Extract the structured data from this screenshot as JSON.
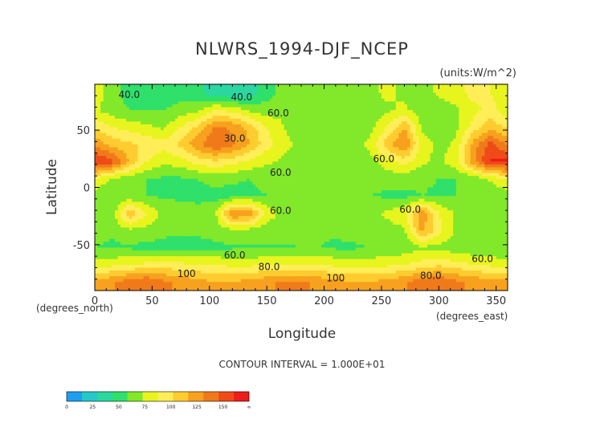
{
  "chart_data": {
    "type": "heatmap",
    "title": "NLWRS_1994-DJF_NCEP",
    "units": "(units:W/m^2)",
    "xlabel": "Longitude",
    "ylabel": "Latitude",
    "x_unit_label": "(degrees_east)",
    "y_unit_label": "(degrees_north)",
    "contour_interval": "CONTOUR INTERVAL = 1.000E+01",
    "xlim": [
      0,
      360
    ],
    "ylim": [
      -90,
      90
    ],
    "x_ticks": [
      "0",
      "50",
      "100",
      "150",
      "200",
      "250",
      "300",
      "350"
    ],
    "x_tick_values": [
      0,
      50,
      100,
      150,
      200,
      250,
      300,
      350
    ],
    "y_ticks": [
      "50",
      "0",
      "-50"
    ],
    "y_tick_values": [
      50,
      0,
      -50
    ],
    "contour_labels": [
      {
        "text": "40.0",
        "lon": 30,
        "lat": 78
      },
      {
        "text": "40.0",
        "lon": 128,
        "lat": 76
      },
      {
        "text": "60.0",
        "lon": 160,
        "lat": 62
      },
      {
        "text": "30.0",
        "lon": 122,
        "lat": 40
      },
      {
        "text": "60.0",
        "lon": 162,
        "lat": 10
      },
      {
        "text": "60.0",
        "lon": 162,
        "lat": -23
      },
      {
        "text": "60.0",
        "lon": 252,
        "lat": 22
      },
      {
        "text": "60.0",
        "lon": 275,
        "lat": -22
      },
      {
        "text": "60.0",
        "lon": 122,
        "lat": -62
      },
      {
        "text": "80.0",
        "lon": 152,
        "lat": -72
      },
      {
        "text": "100",
        "lon": 80,
        "lat": -78
      },
      {
        "text": "100",
        "lon": 210,
        "lat": -82
      },
      {
        "text": "80.0",
        "lon": 293,
        "lat": -80
      },
      {
        "text": "60.0",
        "lon": 338,
        "lat": -65
      }
    ],
    "colorbar": {
      "ticks": [
        "0",
        "25",
        "50",
        "75",
        "100",
        "125",
        "150",
        "∞"
      ],
      "colors": [
        "#1e9ef0",
        "#25c9c9",
        "#2ad7a0",
        "#2fe06a",
        "#82e82a",
        "#e8f41e",
        "#ffee58",
        "#ffcc30",
        "#f7a11e",
        "#f07a1a",
        "#ef4b18",
        "#ef1c1c"
      ]
    },
    "grid": {
      "lon": [
        0,
        15,
        30,
        45,
        60,
        75,
        90,
        105,
        120,
        135,
        150,
        165,
        180,
        195,
        210,
        225,
        240,
        255,
        270,
        285,
        300,
        315,
        330,
        345
      ],
      "lat": [
        82.5,
        67.5,
        52.5,
        37.5,
        22.5,
        7.5,
        -7.5,
        -22.5,
        -37.5,
        -52.5,
        -67.5,
        -82.5
      ],
      "values": [
        [
          70,
          55,
          45,
          45,
          40,
          45,
          40,
          30,
          25,
          30,
          45,
          55,
          60,
          55,
          50,
          55,
          60,
          65,
          60,
          55,
          65,
          70,
          80,
          75
        ],
        [
          65,
          55,
          50,
          50,
          50,
          55,
          60,
          75,
          70,
          60,
          55,
          60,
          62,
          60,
          58,
          55,
          55,
          60,
          65,
          55,
          55,
          60,
          70,
          80
        ],
        [
          85,
          75,
          70,
          65,
          60,
          75,
          90,
          115,
          110,
          95,
          75,
          62,
          60,
          58,
          56,
          55,
          58,
          75,
          100,
          60,
          55,
          60,
          80,
          95
        ],
        [
          110,
          95,
          90,
          85,
          80,
          90,
          110,
          125,
          115,
          100,
          80,
          65,
          60,
          58,
          56,
          58,
          65,
          95,
          115,
          70,
          58,
          65,
          105,
          130
        ],
        [
          140,
          130,
          100,
          75,
          65,
          70,
          80,
          85,
          80,
          72,
          65,
          60,
          58,
          56,
          55,
          56,
          58,
          70,
          80,
          65,
          60,
          70,
          110,
          140
        ],
        [
          75,
          60,
          55,
          50,
          48,
          48,
          50,
          55,
          52,
          50,
          52,
          55,
          58,
          56,
          55,
          54,
          52,
          55,
          55,
          52,
          50,
          50,
          52,
          65
        ],
        [
          55,
          50,
          52,
          50,
          48,
          48,
          46,
          45,
          45,
          48,
          50,
          55,
          58,
          57,
          55,
          52,
          50,
          48,
          47,
          50,
          48,
          50,
          52,
          52
        ],
        [
          60,
          55,
          100,
          75,
          58,
          55,
          55,
          60,
          115,
          110,
          70,
          58,
          56,
          55,
          54,
          55,
          60,
          65,
          72,
          110,
          75,
          60,
          58,
          60
        ],
        [
          55,
          52,
          60,
          58,
          54,
          52,
          52,
          55,
          60,
          58,
          56,
          54,
          53,
          52,
          52,
          54,
          56,
          58,
          60,
          105,
          80,
          60,
          56,
          55
        ],
        [
          50,
          48,
          48,
          46,
          45,
          45,
          46,
          47,
          48,
          48,
          48,
          49,
          50,
          50,
          48,
          48,
          50,
          52,
          54,
          60,
          58,
          55,
          52,
          50
        ],
        [
          70,
          72,
          75,
          78,
          80,
          78,
          76,
          74,
          72,
          72,
          74,
          76,
          75,
          74,
          72,
          70,
          70,
          72,
          75,
          80,
          85,
          80,
          75,
          72
        ],
        [
          105,
          110,
          120,
          125,
          115,
          110,
          105,
          100,
          100,
          105,
          110,
          115,
          115,
          110,
          105,
          100,
          100,
          105,
          110,
          120,
          125,
          115,
          110,
          105
        ]
      ]
    }
  }
}
